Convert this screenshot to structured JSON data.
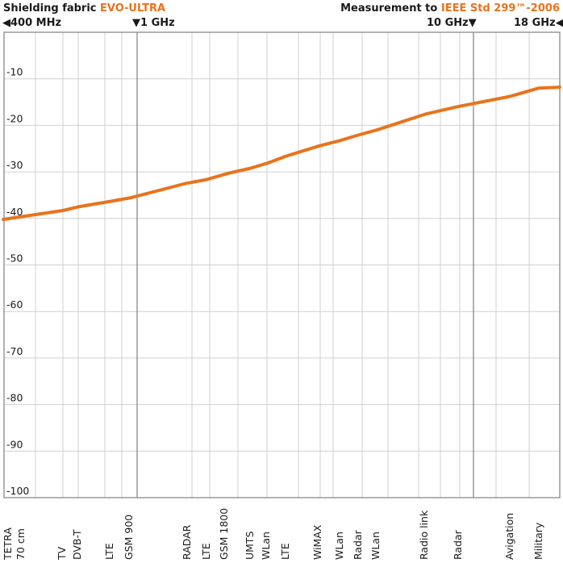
{
  "header": {
    "left_prefix": "Shielding fabric ",
    "left_accent": "EVO-ULTRA",
    "right_prefix": "Measurement to ",
    "right_accent": "IEEE Std 299™-2006"
  },
  "frequency_markers": [
    {
      "label": "400 MHz",
      "arrow": "◀"
    },
    {
      "label": "1 GHz",
      "arrow": "▼"
    },
    {
      "label": "10 GHz",
      "arrow": "▼"
    },
    {
      "label": "18 GHz",
      "arrow": "◀"
    }
  ],
  "colors": {
    "accent": "#e8731c",
    "line": "#e8731c",
    "grid": "#d0d0d0",
    "axis": "#888888"
  },
  "chart_data": {
    "type": "line",
    "title": "Shielding fabric EVO-ULTRA",
    "ylim": [
      -100,
      0
    ],
    "yticks": [
      "-10",
      "-20",
      "-30",
      "-40",
      "-50",
      "-60",
      "-70",
      "-80",
      "-90",
      "-100"
    ],
    "categories": [
      "TETRA 70 cm",
      "TV",
      "DVB-T",
      "LTE",
      "GSM 900",
      "RADAR",
      "LTE",
      "GSM 1800",
      "UMTS",
      "WLan",
      "LTE",
      "WiMAX",
      "WLan",
      "Radar",
      "WLan",
      "Radio link",
      "Radar",
      "Avigation",
      "Military"
    ],
    "series": [
      {
        "values": [
          -40.2,
          -38.3,
          -37.5,
          -36.4,
          -35.6,
          -32.5,
          -31.7,
          -30.3,
          -29.2,
          -28.1,
          -26.6,
          -24.4,
          -23.3,
          -22.1,
          -21.0,
          -17.6,
          -16.0,
          -13.8,
          -12.0
        ]
      }
    ],
    "grid": true
  }
}
